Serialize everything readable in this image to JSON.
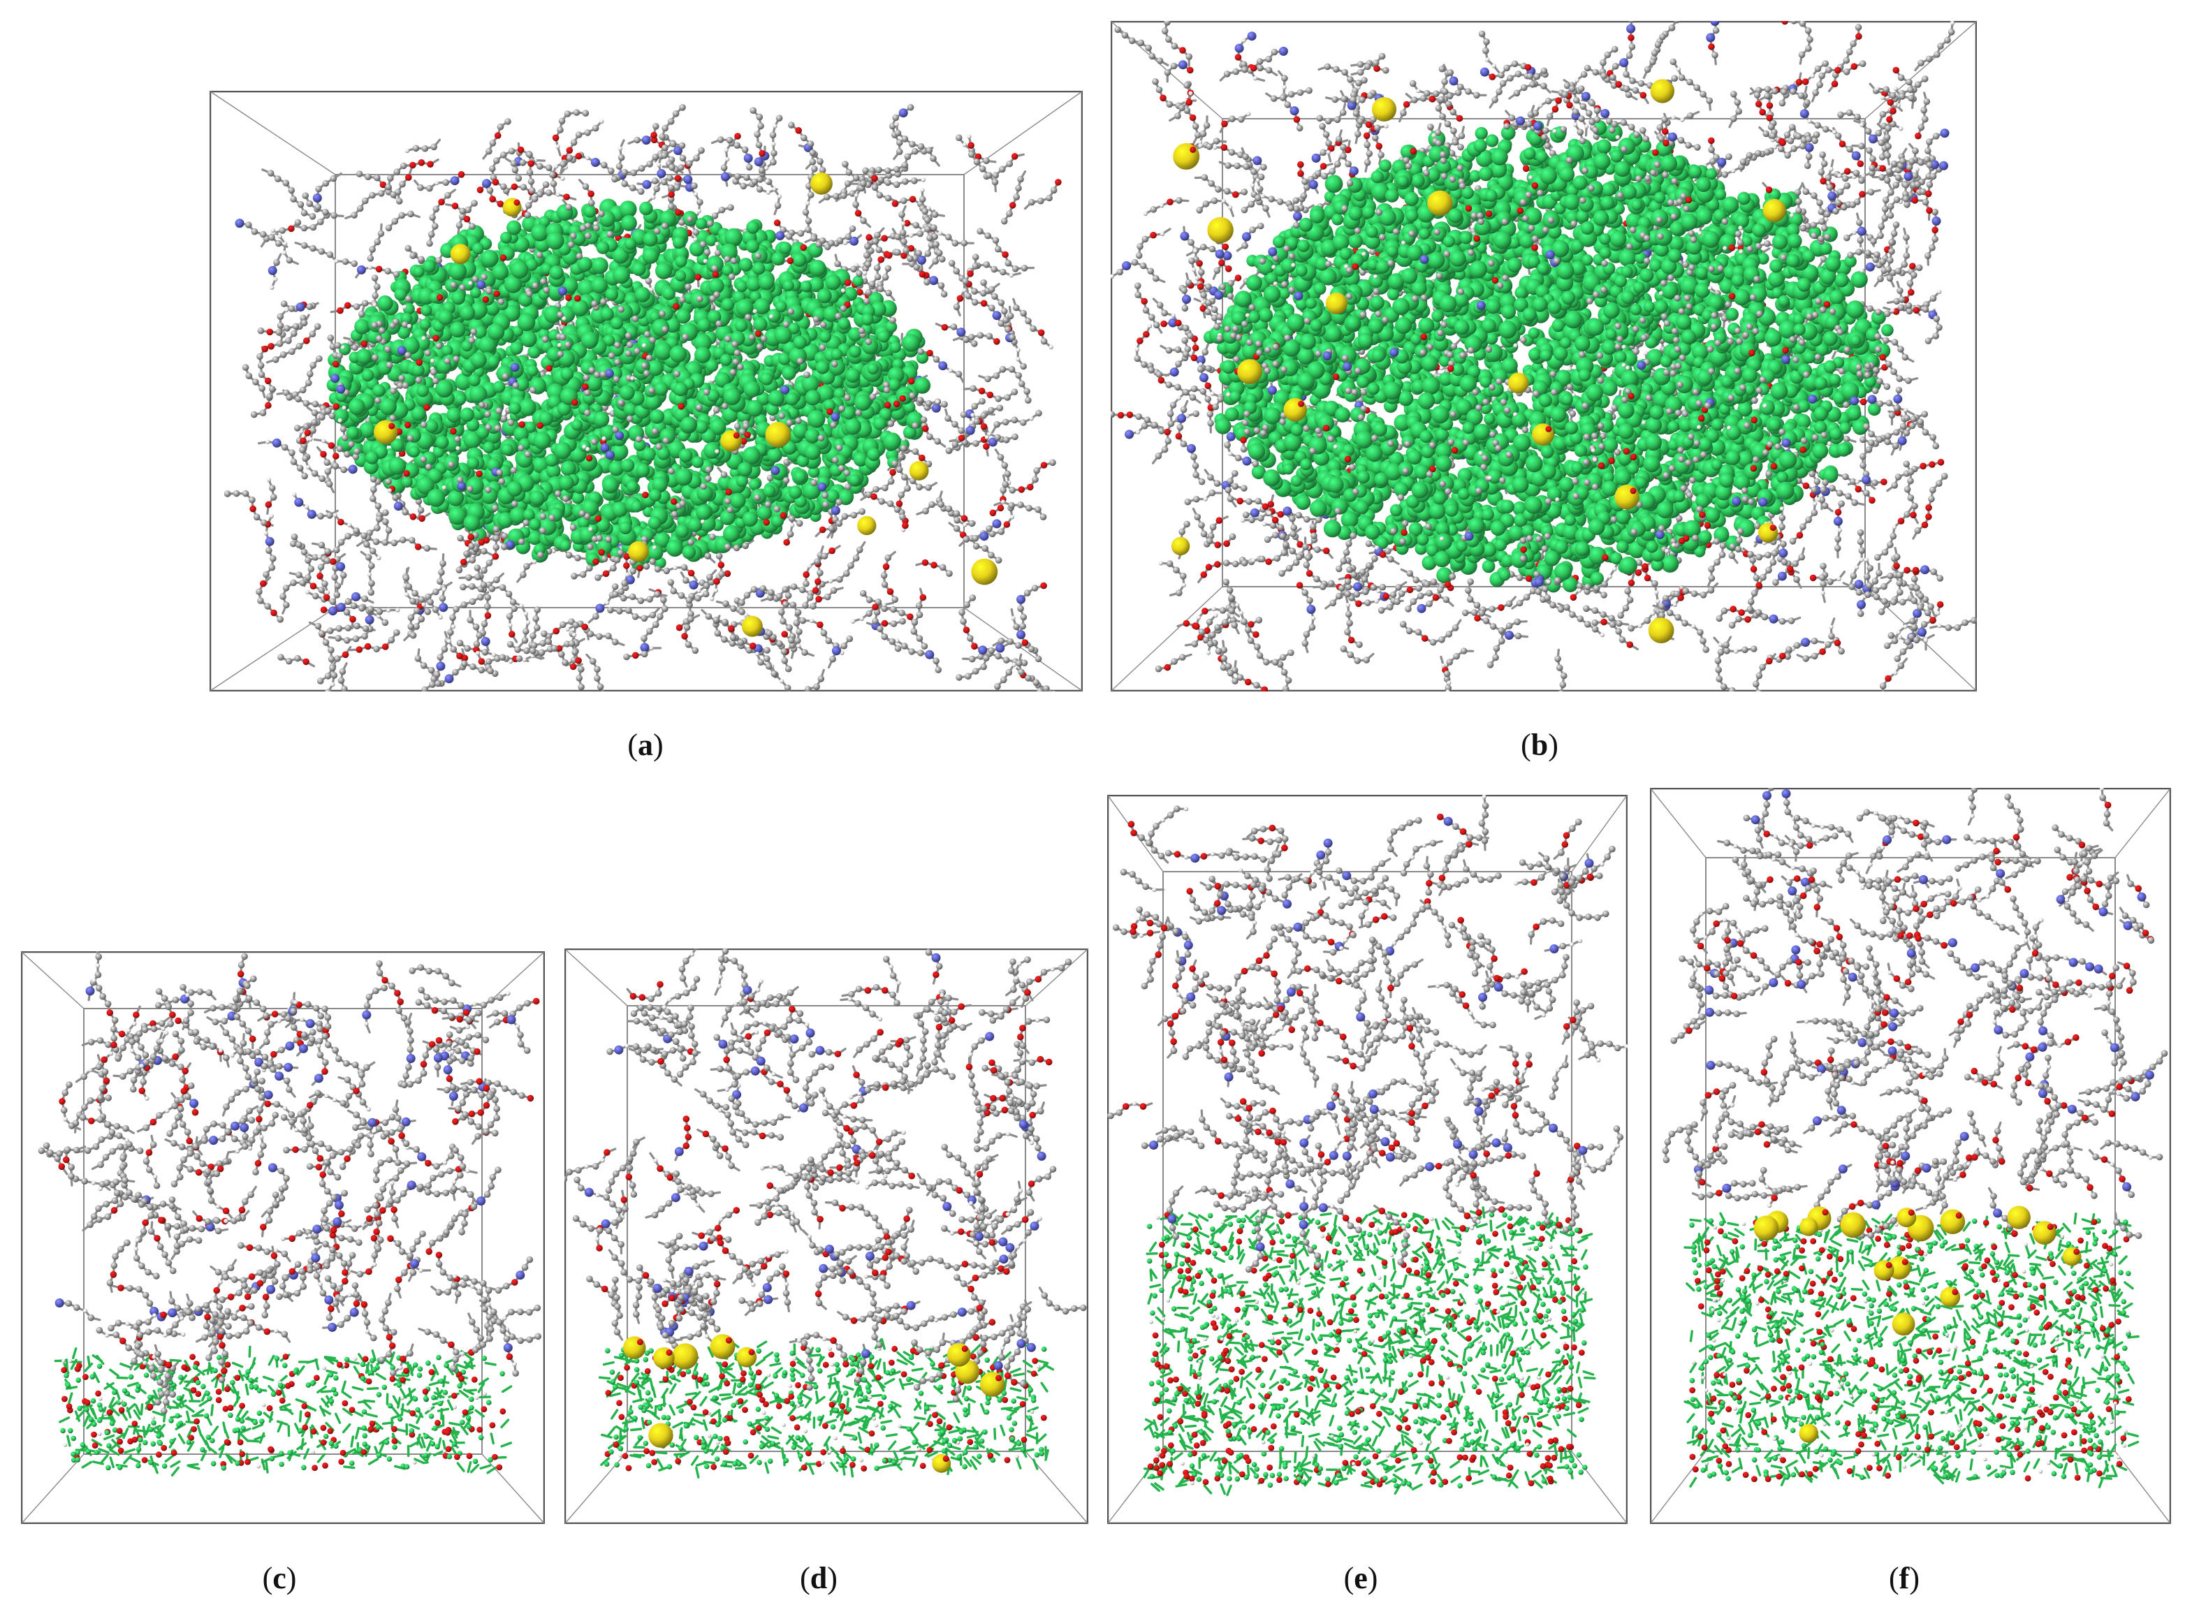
{
  "figure": {
    "panels": [
      {
        "id": "a",
        "letter": "a",
        "orientation": "wide",
        "substrate": "embedded-cluster",
        "cations": 11
      },
      {
        "id": "b",
        "letter": "b",
        "orientation": "wide",
        "substrate": "embedded-cluster",
        "cations": 15
      },
      {
        "id": "c",
        "letter": "c",
        "orientation": "tall",
        "substrate": "single-slab",
        "cations": 0
      },
      {
        "id": "d",
        "letter": "d",
        "orientation": "tall",
        "substrate": "single-slab",
        "cations": 10
      },
      {
        "id": "e",
        "letter": "e",
        "orientation": "tall",
        "substrate": "triple-slab",
        "cations": 0
      },
      {
        "id": "f",
        "letter": "f",
        "orientation": "tall",
        "substrate": "triple-slab",
        "cations": 16
      }
    ],
    "colors": {
      "polymer_carbon": "#9a9a9a",
      "hydrogen": "#e8e4e4",
      "oxygen": "#cc1515",
      "nitrogen": "#5a5fc8",
      "substrate_green": "#2ec55a",
      "cation_yellow": "#e6d21a",
      "box_edge": "#8a8a8a"
    }
  }
}
